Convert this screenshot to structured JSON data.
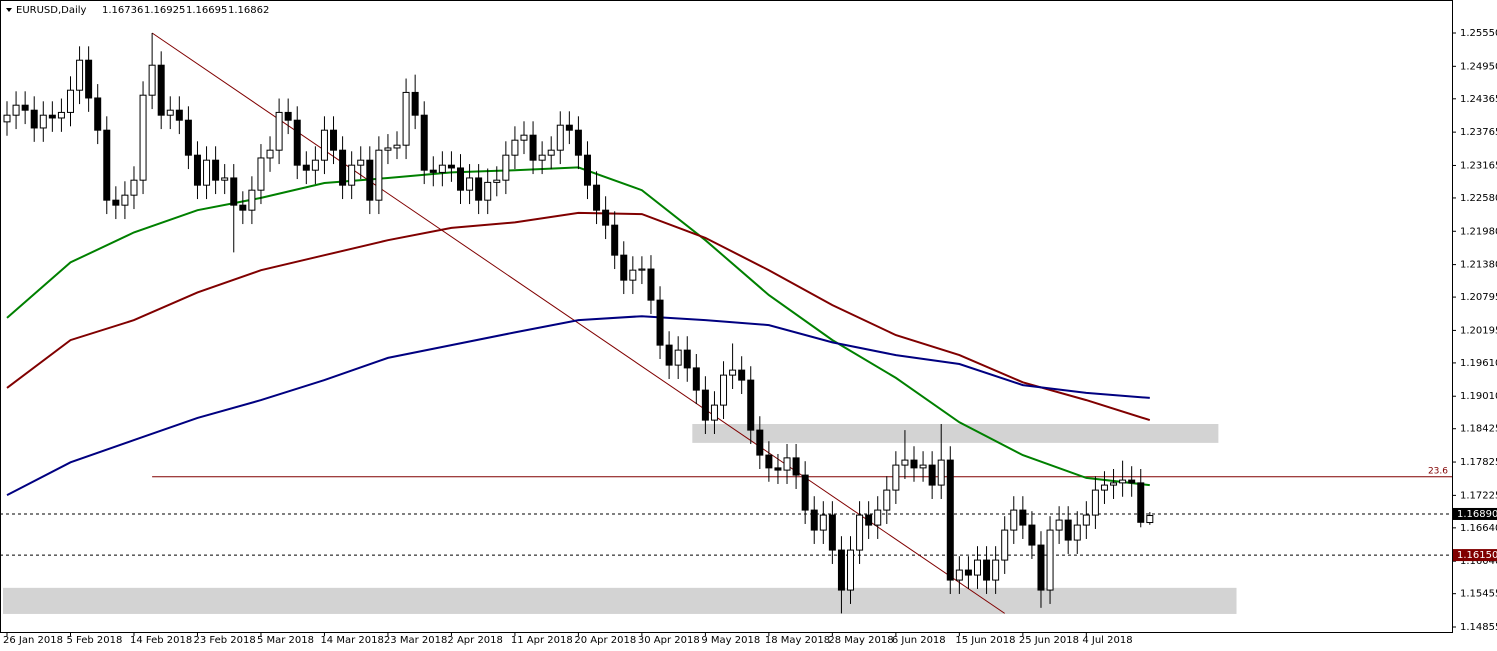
{
  "chart_data": {
    "type": "candlestick",
    "header": {
      "symbol": "EURUSD,Daily",
      "values": [
        1.16736,
        1.16925,
        1.16695,
        1.16862
      ]
    },
    "ylim": [
      1.14765,
      1.26144
    ],
    "yticks": [
      {
        "value": 1.2555,
        "label": "1.25550"
      },
      {
        "value": 1.2495,
        "label": "1.24950"
      },
      1.24365,
      1.23765,
      1.23165,
      {
        "value": 1.2258,
        "label": "1.22580"
      },
      {
        "value": 1.2198,
        "label": "1.21980"
      },
      {
        "value": 1.2138,
        "label": "1.21380"
      },
      1.20795,
      1.20195,
      {
        "value": 1.1961,
        "label": "1.19610"
      },
      {
        "value": 1.1901,
        "label": "1.19010"
      },
      1.18425,
      1.17825,
      1.17225,
      {
        "value": 1.1664,
        "label": "1.16640"
      },
      {
        "value": 1.1604,
        "label": "1.16040"
      },
      1.15455,
      1.14855
    ],
    "categories": [
      "26 Jan 2018",
      null,
      null,
      null,
      null,
      null,
      null,
      "5 Feb 2018",
      null,
      null,
      null,
      null,
      null,
      null,
      "14 Feb 2018",
      null,
      null,
      null,
      null,
      null,
      null,
      "23 Feb 2018",
      null,
      null,
      null,
      null,
      null,
      null,
      "5 Mar 2018",
      null,
      null,
      null,
      null,
      null,
      null,
      "14 Mar 2018",
      null,
      null,
      null,
      null,
      null,
      null,
      "23 Mar 2018",
      null,
      null,
      null,
      null,
      null,
      null,
      "2 Apr 2018",
      null,
      null,
      null,
      null,
      null,
      null,
      "11 Apr 2018",
      null,
      null,
      null,
      null,
      null,
      null,
      "20 Apr 2018",
      null,
      null,
      null,
      null,
      null,
      null,
      "30 Apr 2018",
      null,
      null,
      null,
      null,
      null,
      null,
      "9 May 2018",
      null,
      null,
      null,
      null,
      null,
      null,
      "18 May 2018",
      null,
      null,
      null,
      null,
      null,
      null,
      "28 May 2018",
      null,
      null,
      null,
      null,
      null,
      null,
      "6 Jun 2018",
      null,
      null,
      null,
      null,
      null,
      null,
      "15 Jun 2018",
      null,
      null,
      null,
      null,
      null,
      null,
      "25 Jun 2018",
      null,
      null,
      null,
      null,
      null,
      null,
      "4 Jul 2018",
      null,
      null,
      null,
      null,
      null,
      null,
      null
    ],
    "open": [
      1.2395,
      1.2407,
      1.2425,
      1.2416,
      1.2384,
      1.2407,
      1.2402,
      1.2412,
      1.2452,
      1.2506,
      1.2438,
      1.238,
      1.2254,
      1.2245,
      1.2263,
      1.229,
      1.2443,
      1.2497,
      1.2407,
      1.2416,
      1.2398,
      1.2335,
      1.2281,
      1.2326,
      1.229,
      1.2294,
      1.2245,
      1.2236,
      1.2272,
      1.233,
      1.2344,
      1.2412,
      1.2398,
      1.2317,
      1.2308,
      1.2326,
      1.238,
      1.2344,
      1.2281,
      1.2317,
      1.2326,
      1.2254,
      1.2344,
      1.2348,
      1.2353,
      1.2448,
      1.2407,
      1.2308,
      1.2304,
      1.2317,
      1.2312,
      1.2272,
      1.2294,
      1.2254,
      1.2286,
      1.229,
      1.2335,
      1.2362,
      1.2371,
      1.2326,
      1.2335,
      1.2344,
      1.2389,
      1.238,
      1.2335,
      1.2281,
      1.2236,
      1.2209,
      1.2155,
      1.211,
      1.2128,
      1.213,
      1.2074,
      1.1993,
      1.1957,
      1.1984,
      1.1952,
      1.1912,
      1.1858,
      1.1885,
      1.1939,
      1.1948,
      1.193,
      1.184,
      1.1795,
      1.1772,
      1.1768,
      1.179,
      1.1759,
      1.1696,
      1.166,
      1.1687,
      1.1624,
      1.1552,
      1.1624,
      1.1687,
      1.1669,
      1.1696,
      1.1732,
      1.1777,
      1.1786,
      1.1772,
      1.1777,
      1.1741,
      1.1786,
      1.157,
      1.1588,
      1.1579,
      1.1606,
      1.157,
      1.1606,
      1.166,
      1.1696,
      1.1669,
      1.1633,
      1.1552,
      1.166,
      1.1678,
      1.1642,
      1.1669,
      1.1687,
      1.1732,
      1.1741,
      1.1745,
      1.175,
      1.1745,
      1.16736
    ],
    "high": [
      1.2432,
      1.245,
      1.245,
      1.2441,
      1.2432,
      1.2432,
      1.2437,
      1.2477,
      1.2531,
      1.2531,
      1.2463,
      1.2405,
      1.2279,
      1.2288,
      1.2315,
      1.2468,
      1.2555,
      1.2522,
      1.2441,
      1.2441,
      1.2423,
      1.236,
      1.2351,
      1.2351,
      1.2319,
      1.2319,
      1.227,
      1.2297,
      1.2355,
      1.2369,
      1.2437,
      1.2437,
      1.2423,
      1.2342,
      1.2351,
      1.2405,
      1.2405,
      1.2369,
      1.2342,
      1.2351,
      1.2351,
      1.2369,
      1.2373,
      1.2378,
      1.2473,
      1.248,
      1.2432,
      1.2333,
      1.2342,
      1.2342,
      1.2337,
      1.2319,
      1.2319,
      1.2311,
      1.2315,
      1.236,
      1.2387,
      1.2396,
      1.2396,
      1.236,
      1.2369,
      1.2414,
      1.2414,
      1.2405,
      1.236,
      1.2306,
      1.2261,
      1.2234,
      1.218,
      1.2153,
      1.2153,
      1.2155,
      1.2099,
      1.2018,
      1.2009,
      1.2009,
      1.1977,
      1.1937,
      1.191,
      1.1964,
      1.1996,
      1.1973,
      1.1955,
      1.1865,
      1.182,
      1.1797,
      1.1815,
      1.1815,
      1.1784,
      1.1721,
      1.1712,
      1.1712,
      1.1649,
      1.1649,
      1.1712,
      1.1712,
      1.1721,
      1.1757,
      1.1802,
      1.184,
      1.1811,
      1.1802,
      1.1802,
      1.1851,
      1.1811,
      1.1613,
      1.1613,
      1.1631,
      1.1631,
      1.1631,
      1.1685,
      1.1721,
      1.1721,
      1.1694,
      1.1658,
      1.1685,
      1.1703,
      1.1703,
      1.1694,
      1.1712,
      1.1757,
      1.1766,
      1.177,
      1.1785,
      1.1775,
      1.177,
      1.16925
    ],
    "low": [
      1.237,
      1.2382,
      1.2391,
      1.2359,
      1.2359,
      1.2377,
      1.2377,
      1.2387,
      1.2427,
      1.2413,
      1.2355,
      1.2229,
      1.222,
      1.222,
      1.2238,
      1.2265,
      1.2418,
      1.2382,
      1.2382,
      1.2373,
      1.231,
      1.2256,
      1.2256,
      1.2265,
      1.2265,
      1.216,
      1.2211,
      1.2211,
      1.2247,
      1.2305,
      1.2319,
      1.2373,
      1.2292,
      1.2283,
      1.2283,
      1.2301,
      1.2319,
      1.2256,
      1.2256,
      1.2292,
      1.2229,
      1.2229,
      1.2319,
      1.2328,
      1.2328,
      1.2382,
      1.2283,
      1.2279,
      1.2279,
      1.2287,
      1.2247,
      1.2247,
      1.2229,
      1.2229,
      1.2261,
      1.2265,
      1.231,
      1.2337,
      1.2301,
      1.2301,
      1.231,
      1.2319,
      1.2355,
      1.231,
      1.2256,
      1.2211,
      1.2184,
      1.213,
      1.2085,
      1.2085,
      1.2103,
      1.2049,
      1.1968,
      1.1932,
      1.1932,
      1.1927,
      1.1887,
      1.1833,
      1.1833,
      1.186,
      1.1914,
      1.1905,
      1.1815,
      1.177,
      1.1747,
      1.1743,
      1.1743,
      1.1734,
      1.1671,
      1.1635,
      1.1635,
      1.1599,
      1.151,
      1.1527,
      1.1599,
      1.1644,
      1.1644,
      1.1671,
      1.1707,
      1.1752,
      1.1747,
      1.1747,
      1.1716,
      1.1716,
      1.1545,
      1.1545,
      1.1554,
      1.1554,
      1.1545,
      1.1545,
      1.1581,
      1.1635,
      1.1644,
      1.1608,
      1.152,
      1.1527,
      1.1635,
      1.1617,
      1.1617,
      1.1644,
      1.1662,
      1.1707,
      1.1716,
      1.172,
      1.172,
      1.1665,
      1.16695
    ],
    "close": [
      1.2407,
      1.2425,
      1.2416,
      1.2384,
      1.2407,
      1.2402,
      1.2412,
      1.2452,
      1.2506,
      1.2438,
      1.238,
      1.2254,
      1.2245,
      1.2263,
      1.229,
      1.2443,
      1.2497,
      1.2407,
      1.2416,
      1.2398,
      1.2335,
      1.2281,
      1.2326,
      1.229,
      1.2294,
      1.2245,
      1.2236,
      1.2272,
      1.233,
      1.2344,
      1.2412,
      1.2398,
      1.2317,
      1.2308,
      1.2326,
      1.238,
      1.2344,
      1.2281,
      1.2317,
      1.2326,
      1.2254,
      1.2344,
      1.2348,
      1.2353,
      1.2448,
      1.2407,
      1.2308,
      1.2304,
      1.2317,
      1.2312,
      1.2272,
      1.2294,
      1.2254,
      1.2286,
      1.229,
      1.2335,
      1.2362,
      1.2371,
      1.2326,
      1.2335,
      1.2344,
      1.2389,
      1.238,
      1.2335,
      1.2281,
      1.2236,
      1.2209,
      1.2155,
      1.211,
      1.2128,
      1.213,
      1.2074,
      1.1993,
      1.1957,
      1.1984,
      1.1952,
      1.1912,
      1.1858,
      1.1885,
      1.1939,
      1.1948,
      1.193,
      1.184,
      1.1795,
      1.1772,
      1.1768,
      1.179,
      1.1759,
      1.1696,
      1.166,
      1.1687,
      1.1624,
      1.1552,
      1.1624,
      1.1687,
      1.1669,
      1.1696,
      1.1732,
      1.1777,
      1.1786,
      1.1772,
      1.1777,
      1.1741,
      1.1786,
      1.157,
      1.1588,
      1.1579,
      1.1606,
      1.157,
      1.1606,
      1.166,
      1.1696,
      1.1669,
      1.1633,
      1.1552,
      1.166,
      1.1678,
      1.1642,
      1.1669,
      1.1687,
      1.1732,
      1.1741,
      1.1745,
      1.175,
      1.1745,
      1.1674,
      1.16862
    ],
    "series": [
      {
        "color": "#008000",
        "x": [
          0,
          7,
          14,
          21,
          28,
          35,
          42,
          49,
          56,
          63,
          70,
          77,
          84,
          91,
          98,
          105,
          112,
          119,
          126
        ],
        "values": [
          1.2042,
          1.2142,
          1.2196,
          1.2236,
          1.2258,
          1.2285,
          1.2294,
          1.2304,
          1.2308,
          1.2313,
          1.2272,
          1.2182,
          1.2083,
          1.2002,
          1.1934,
          1.1854,
          1.1795,
          1.1754,
          1.1741
        ]
      },
      {
        "color": "#800000",
        "x": [
          0,
          7,
          14,
          21,
          28,
          35,
          42,
          49,
          56,
          63,
          70,
          77,
          84,
          91,
          98,
          105,
          112,
          119,
          126
        ],
        "values": [
          1.1916,
          1.2002,
          1.2038,
          1.2088,
          1.2128,
          1.2155,
          1.2182,
          1.2204,
          1.2214,
          1.2231,
          1.2229,
          1.2186,
          1.2128,
          1.2065,
          1.2011,
          1.1975,
          1.1926,
          1.1894,
          1.1858
        ]
      },
      {
        "color": "#000080",
        "x": [
          0,
          7,
          14,
          21,
          28,
          35,
          42,
          49,
          56,
          63,
          70,
          77,
          84,
          91,
          98,
          105,
          112,
          119,
          126
        ],
        "values": [
          1.1723,
          1.1782,
          1.1822,
          1.1862,
          1.1894,
          1.193,
          1.197,
          1.1993,
          1.2016,
          1.2038,
          1.2045,
          1.2038,
          1.2029,
          1.1998,
          1.1975,
          1.1959,
          1.1921,
          1.1907,
          1.1898
        ]
      }
    ],
    "trendline": {
      "color": "#800000",
      "x": [
        16,
        110
      ],
      "values": [
        1.2555,
        1.151
      ]
    },
    "fib_line": {
      "color": "#800000",
      "label": "23.6",
      "start": 16,
      "value": 1.1756
    },
    "zones": [
      {
        "from": 76,
        "to": 134,
        "top": 1.1851,
        "bottom": 1.1817
      },
      {
        "from": 0,
        "to": 136,
        "top": 1.1556,
        "bottom": 1.1509
      }
    ],
    "price_lines": [
      {
        "value": 1.1689,
        "label": "1.16890",
        "color": "#000000"
      },
      {
        "value": 1.1615,
        "label": "1.16150",
        "color": "#800000"
      }
    ]
  }
}
